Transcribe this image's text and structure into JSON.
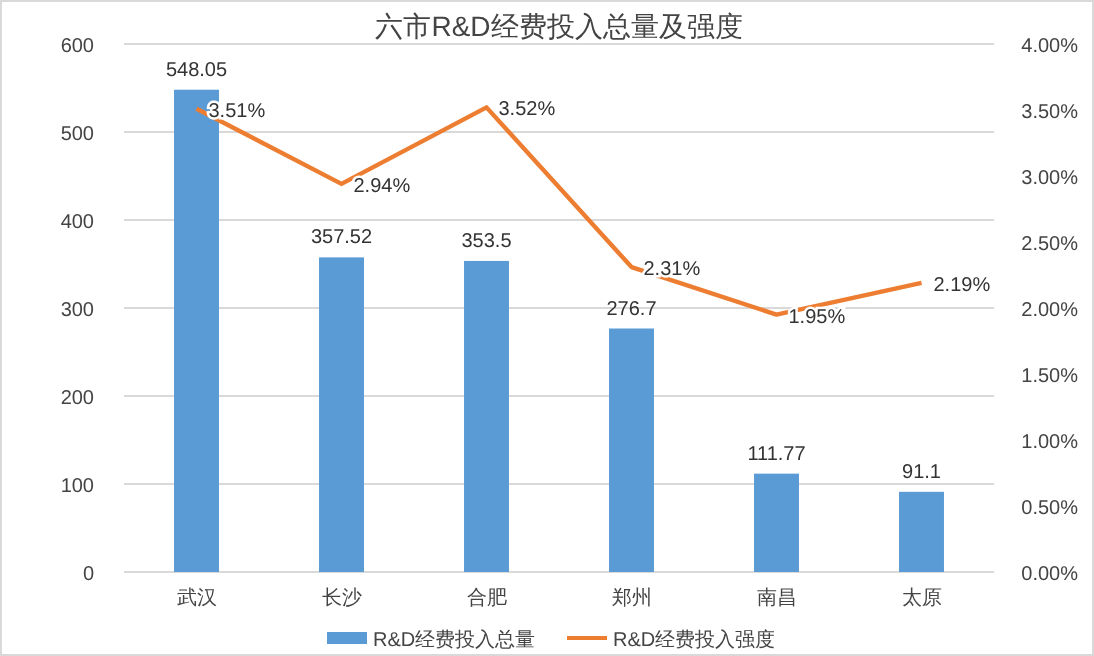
{
  "chart_data": {
    "type": "bar",
    "title": "六市R&D经费投入总量及强度",
    "categories": [
      "武汉",
      "长沙",
      "合肥",
      "郑州",
      "南昌",
      "太原"
    ],
    "series": [
      {
        "name": "R&D经费投入总量",
        "color": "#5b9bd5",
        "values": [
          548.05,
          357.52,
          353.5,
          276.7,
          111.77,
          91.1
        ],
        "value_labels": [
          "548.05",
          "357.52",
          "353.5",
          "276.7",
          "111.77",
          "91.1"
        ]
      },
      {
        "name": "R&D经费投入强度",
        "type": "line",
        "axis": "y2",
        "color": "#ed7d31",
        "values": [
          3.51,
          2.94,
          3.52,
          2.31,
          1.95,
          2.19
        ],
        "value_labels": [
          "3.51%",
          "2.94%",
          "3.52%",
          "2.31%",
          "1.95%",
          "2.19%"
        ]
      }
    ],
    "ylim": [
      0,
      600
    ],
    "yticks": [
      0,
      100,
      200,
      300,
      400,
      500,
      600
    ],
    "y2lim": [
      0,
      4
    ],
    "y2ticks": [
      {
        "value": 0,
        "label": "0.00%"
      },
      {
        "value": 0.5,
        "label": "0.50%"
      },
      {
        "value": 1,
        "label": "1.00%"
      },
      {
        "value": 1.5,
        "label": "1.50%"
      },
      {
        "value": 2,
        "label": "2.00%"
      },
      {
        "value": 2.5,
        "label": "2.50%"
      },
      {
        "value": 3,
        "label": "3.00%"
      },
      {
        "value": 3.5,
        "label": "3.50%"
      },
      {
        "value": 4,
        "label": "4.00%"
      }
    ],
    "grid": "y",
    "legend": "bottom",
    "marker": "none",
    "line_style": "solid"
  }
}
